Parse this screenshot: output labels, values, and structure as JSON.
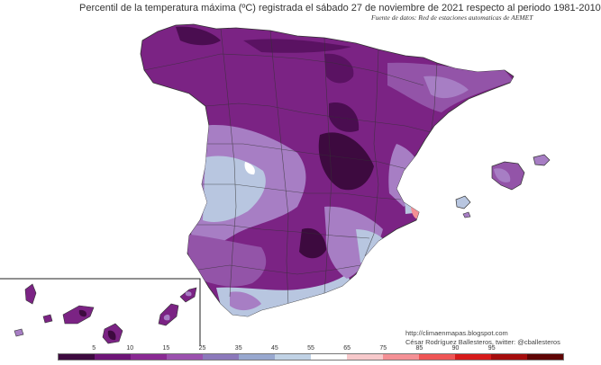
{
  "title": "Percentil de la temperatura máxima (ºC) registrada el sábado 27 de noviembre de 2021 respecto al periodo 1981-2010",
  "source": "Fuente de datos: Red de estaciones automaticas de AEMET",
  "credits": {
    "url": "http://climaenmapas.blogspot.com",
    "author": "César Rodríguez Ballesteros, twitter: @cballesteros"
  },
  "legend": {
    "tick_labels": [
      "5",
      "10",
      "15",
      "25",
      "35",
      "45",
      "55",
      "65",
      "75",
      "85",
      "90",
      "95"
    ],
    "colors": [
      "#3d0a3f",
      "#6e1577",
      "#8a2a93",
      "#9b51ae",
      "#8c79bb",
      "#98a8cf",
      "#c0d2e5",
      "#ffffff",
      "#f7c9cb",
      "#f49095",
      "#ee5555",
      "#d61a1a",
      "#a50c0c",
      "#5f0505"
    ]
  },
  "colors": {
    "dark_purple": "#3d0a3f",
    "purple": "#7b2384",
    "mid_purple": "#9354a8",
    "light_purple": "#a77ec4",
    "pale_blue": "#b8c6e0",
    "warm_spot": "#f49095"
  }
}
